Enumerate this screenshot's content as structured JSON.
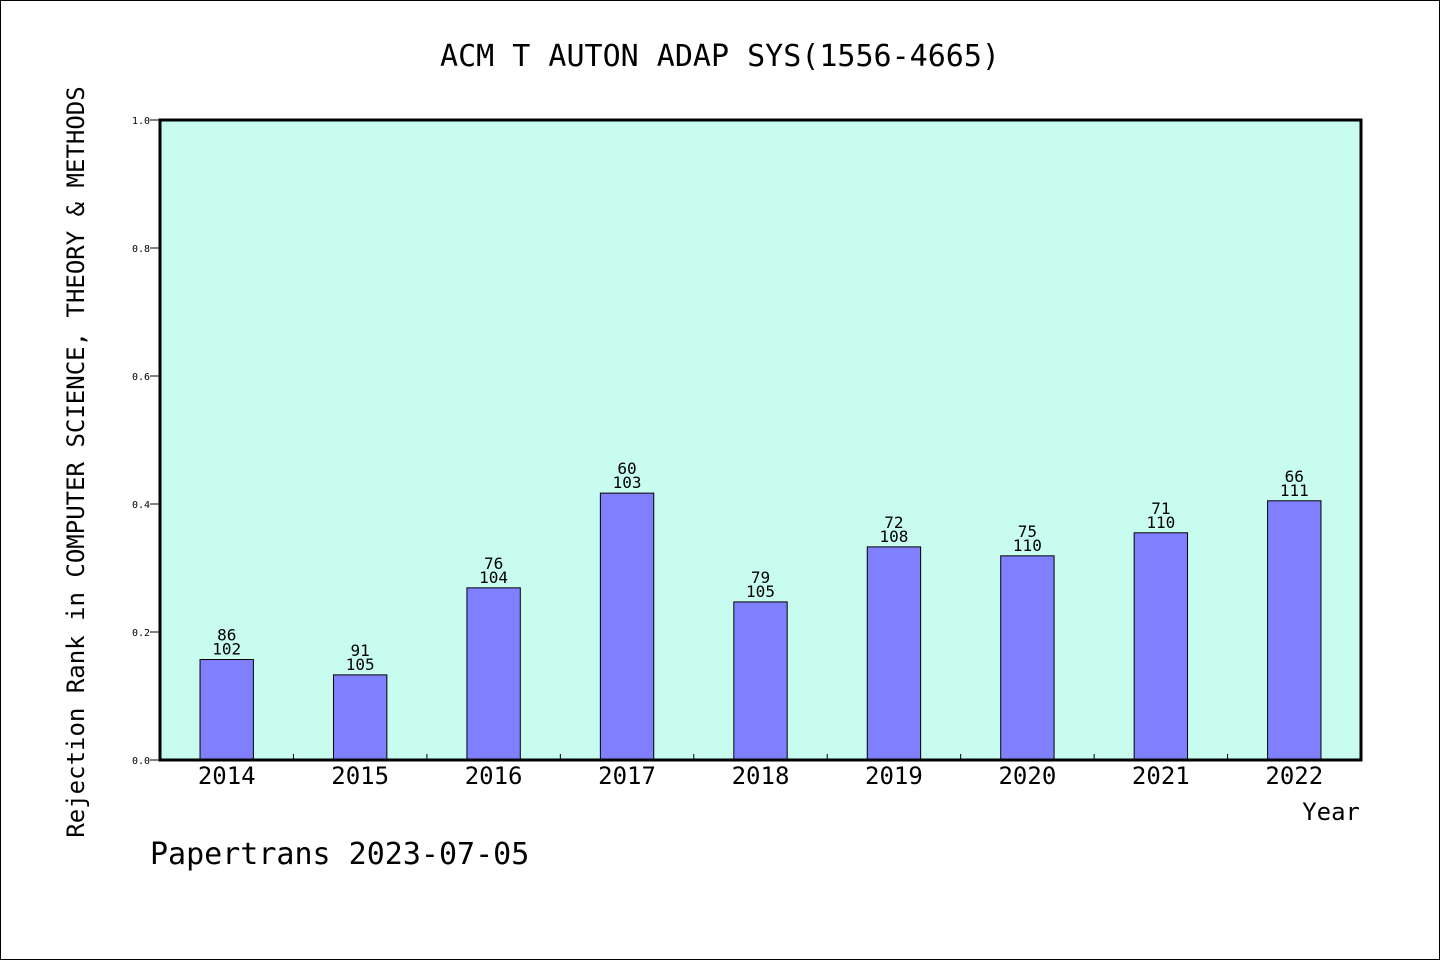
{
  "chart_data": {
    "type": "bar",
    "title": "ACM T AUTON ADAP SYS(1556-4665)",
    "xlabel": "Year",
    "ylabel": "Rejection Rank in COMPUTER SCIENCE, THEORY & METHODS",
    "footer": "Papertrans 2023-07-05",
    "categories": [
      "2014",
      "2015",
      "2016",
      "2017",
      "2018",
      "2019",
      "2020",
      "2021",
      "2022"
    ],
    "values": [
      0.157,
      0.133,
      0.269,
      0.417,
      0.247,
      0.333,
      0.319,
      0.355,
      0.405
    ],
    "label_top": [
      "86",
      "91",
      "76",
      "60",
      "79",
      "72",
      "75",
      "71",
      "66"
    ],
    "label_bottom": [
      "102",
      "105",
      "104",
      "103",
      "105",
      "108",
      "110",
      "110",
      "111"
    ],
    "ylim": [
      0,
      1.0
    ],
    "yticks": [
      "0.0",
      "0.2",
      "0.4",
      "0.6",
      "0.8",
      "1.0"
    ],
    "grid": false,
    "colors": {
      "plot_background": "#c8fcef",
      "bar_fill": "#8080ff",
      "bar_stroke": "#000000"
    }
  }
}
